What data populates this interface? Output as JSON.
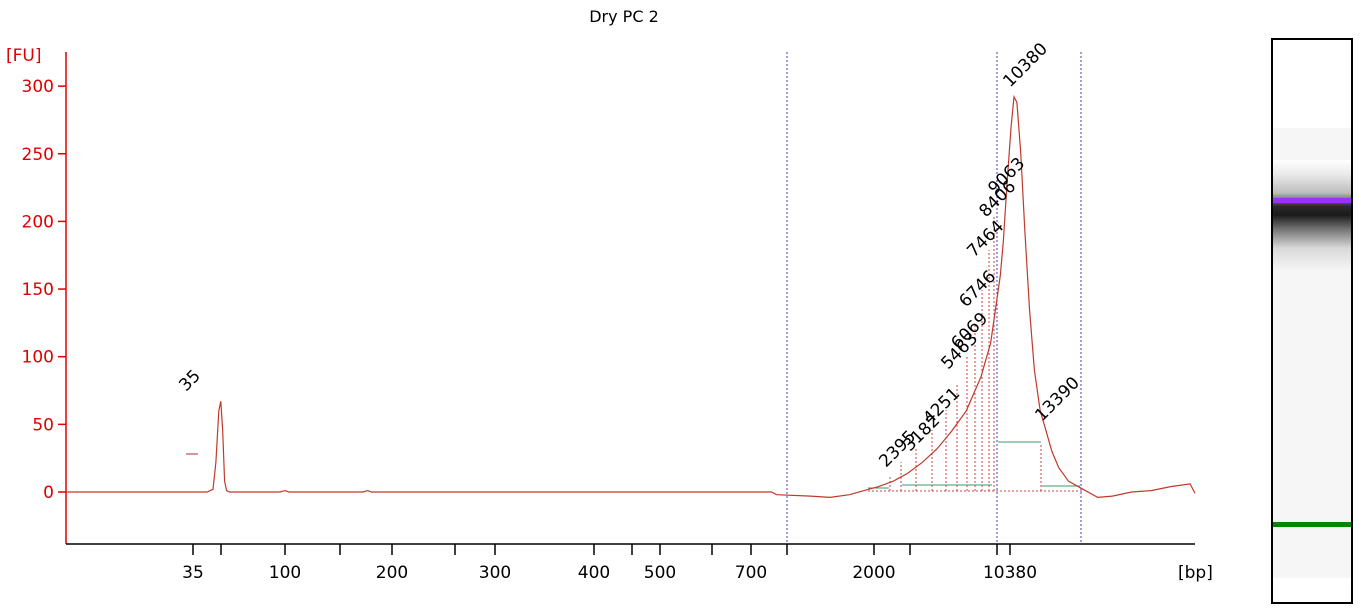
{
  "chart_data": {
    "type": "line",
    "title": "Dry PC 2",
    "ylabel": "[FU]",
    "xlabel": "[bp]",
    "ylim": [
      -38,
      325
    ],
    "y_ticks": [
      0,
      50,
      100,
      150,
      200,
      250,
      300
    ],
    "x_ticks": [
      "35",
      "100",
      "200",
      "300",
      "400",
      "500",
      "700",
      "2000",
      "10380"
    ],
    "grid": false,
    "series": [
      {
        "color": "#c0392b",
        "points": [
          [
            35,
            0
          ],
          [
            180,
            0
          ],
          [
            186,
            2
          ],
          [
            189,
            22
          ],
          [
            192,
            60
          ],
          [
            194,
            67
          ],
          [
            196,
            45
          ],
          [
            198,
            8
          ],
          [
            200,
            1
          ],
          [
            203,
            0
          ],
          [
            255,
            0
          ],
          [
            260,
            1
          ],
          [
            264,
            0
          ],
          [
            340,
            0
          ],
          [
            345,
            1
          ],
          [
            349,
            0
          ],
          [
            760,
            0
          ],
          [
            765,
            -2
          ],
          [
            800,
            -3
          ],
          [
            820,
            -4
          ],
          [
            840,
            -2
          ],
          [
            855,
            1
          ],
          [
            870,
            4
          ],
          [
            885,
            8
          ],
          [
            900,
            14
          ],
          [
            915,
            22
          ],
          [
            930,
            32
          ],
          [
            945,
            45
          ],
          [
            960,
            60
          ],
          [
            975,
            85
          ],
          [
            985,
            110
          ],
          [
            990,
            135
          ],
          [
            995,
            160
          ],
          [
            998,
            185
          ],
          [
            1002,
            230
          ],
          [
            1006,
            270
          ],
          [
            1009,
            292
          ],
          [
            1012,
            288
          ],
          [
            1016,
            250
          ],
          [
            1020,
            195
          ],
          [
            1025,
            135
          ],
          [
            1030,
            90
          ],
          [
            1036,
            60
          ],
          [
            1042,
            45
          ],
          [
            1048,
            30
          ],
          [
            1055,
            18
          ],
          [
            1065,
            8
          ],
          [
            1080,
            2
          ],
          [
            1095,
            -4
          ],
          [
            1110,
            -3
          ],
          [
            1130,
            0
          ],
          [
            1150,
            1
          ],
          [
            1170,
            4
          ],
          [
            1190,
            6
          ],
          [
            1195,
            -1
          ]
        ]
      }
    ],
    "peaks": [
      {
        "label": "35",
        "color": "#007700"
      },
      {
        "label": "10380",
        "color": "#9b30ff"
      },
      {
        "label": "2395",
        "color": "#000000"
      },
      {
        "label": "3182",
        "color": "#000000"
      },
      {
        "label": "4251",
        "color": "#000000"
      },
      {
        "label": "5463",
        "color": "#000000"
      },
      {
        "label": "6069",
        "color": "#000000"
      },
      {
        "label": "6746",
        "color": "#000000"
      },
      {
        "label": "7464",
        "color": "#000000"
      },
      {
        "label": "8406",
        "color": "#000000"
      },
      {
        "label": "9063",
        "color": "#000000"
      },
      {
        "label": "13390",
        "color": "#000000"
      }
    ]
  }
}
